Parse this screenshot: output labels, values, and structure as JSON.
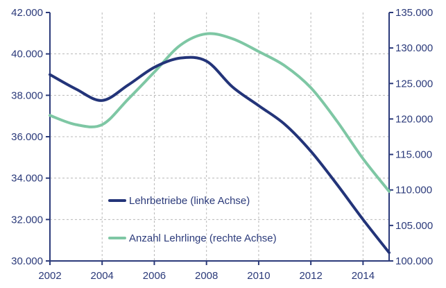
{
  "chart_data": {
    "type": "line",
    "title": "",
    "xlabel": "",
    "ylabel": "",
    "x": [
      2002,
      2003,
      2004,
      2005,
      2006,
      2007,
      2008,
      2009,
      2010,
      2011,
      2012,
      2013,
      2014,
      2015
    ],
    "xticks": [
      "2002",
      "2004",
      "2006",
      "2008",
      "2010",
      "2012",
      "2014"
    ],
    "xlim": [
      2002,
      2015
    ],
    "ylim_left": [
      30000,
      42000
    ],
    "ylim_right": [
      100000,
      135000
    ],
    "yticks_left": [
      "30.000",
      "32.000",
      "34.000",
      "36.000",
      "38.000",
      "40.000",
      "42.000"
    ],
    "yticks_right": [
      "100.000",
      "105.000",
      "110.000",
      "115.000",
      "120.000",
      "125.000",
      "130.000",
      "135.000"
    ],
    "grid": true,
    "legend_position": "bottom-left",
    "series": [
      {
        "name": "Lehrbetriebe (linke Achse)",
        "axis": "left",
        "color": "#233479",
        "values": [
          39000,
          38300,
          37750,
          38500,
          39350,
          39800,
          39650,
          38400,
          37500,
          36600,
          35300,
          33700,
          32000,
          30400
        ]
      },
      {
        "name": "Anzahl Lehrlinge (rechte Achse)",
        "axis": "right",
        "color": "#7ec7a4",
        "values": [
          120500,
          119200,
          119200,
          122800,
          126600,
          130400,
          132000,
          131300,
          129500,
          127500,
          124400,
          119700,
          114400,
          109800
        ]
      }
    ]
  }
}
